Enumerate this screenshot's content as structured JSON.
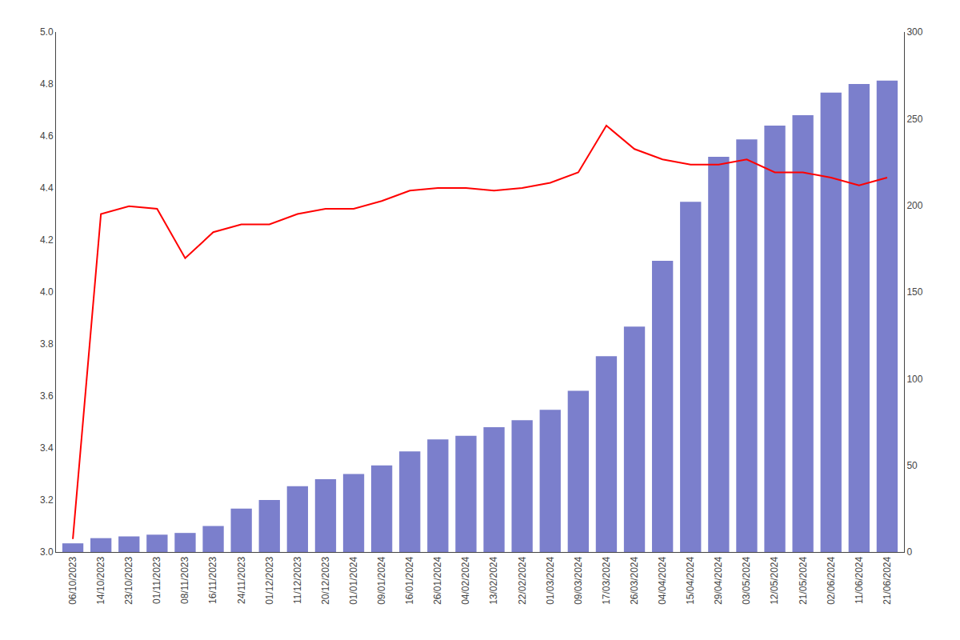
{
  "chart_data": {
    "type": "bar",
    "categories": [
      "06/10/2023",
      "14/10/2023",
      "23/10/2023",
      "01/11/2023",
      "08/11/2023",
      "16/11/2023",
      "24/11/2023",
      "01/12/2023",
      "11/12/2023",
      "20/12/2023",
      "01/01/2024",
      "09/01/2024",
      "16/01/2024",
      "26/01/2024",
      "04/02/2024",
      "13/02/2024",
      "22/02/2024",
      "01/03/2024",
      "09/03/2024",
      "17/03/2024",
      "26/03/2024",
      "04/04/2024",
      "15/04/2024",
      "29/04/2024",
      "03/05/2024",
      "12/05/2024",
      "21/05/2024",
      "02/06/2024",
      "11/06/2024",
      "21/06/2024"
    ],
    "series": [
      {
        "type": "bar",
        "axis": "y2",
        "color": "#7b7fcc",
        "values": [
          5,
          8,
          9,
          10,
          11,
          15,
          25,
          30,
          38,
          42,
          45,
          50,
          58,
          65,
          67,
          72,
          76,
          82,
          93,
          113,
          130,
          168,
          202,
          228,
          238,
          246,
          252,
          265,
          270,
          272
        ]
      },
      {
        "type": "line",
        "color": "#ff0000",
        "values": [
          3.05,
          4.3,
          4.33,
          4.32,
          4.13,
          4.23,
          4.26,
          4.26,
          4.3,
          4.32,
          4.32,
          4.35,
          4.39,
          4.4,
          4.4,
          4.39,
          4.4,
          4.42,
          4.46,
          4.64,
          4.55,
          4.51,
          4.49,
          4.49,
          4.51,
          4.46,
          4.46,
          4.44,
          4.41,
          4.44
        ]
      }
    ],
    "ylim": [
      3.0,
      5.0
    ],
    "yticks": [
      {
        "value": 3.0,
        "label": "3.0"
      },
      3.2,
      3.4,
      3.6,
      3.8,
      {
        "value": 4.0,
        "label": "4.0"
      },
      4.2,
      4.4,
      4.6,
      4.8,
      {
        "value": 5.0,
        "label": "5.0"
      }
    ],
    "y2lim": [
      0,
      300
    ],
    "y2ticks": [
      0,
      50,
      100,
      150,
      200,
      250,
      300
    ],
    "grid": false
  }
}
